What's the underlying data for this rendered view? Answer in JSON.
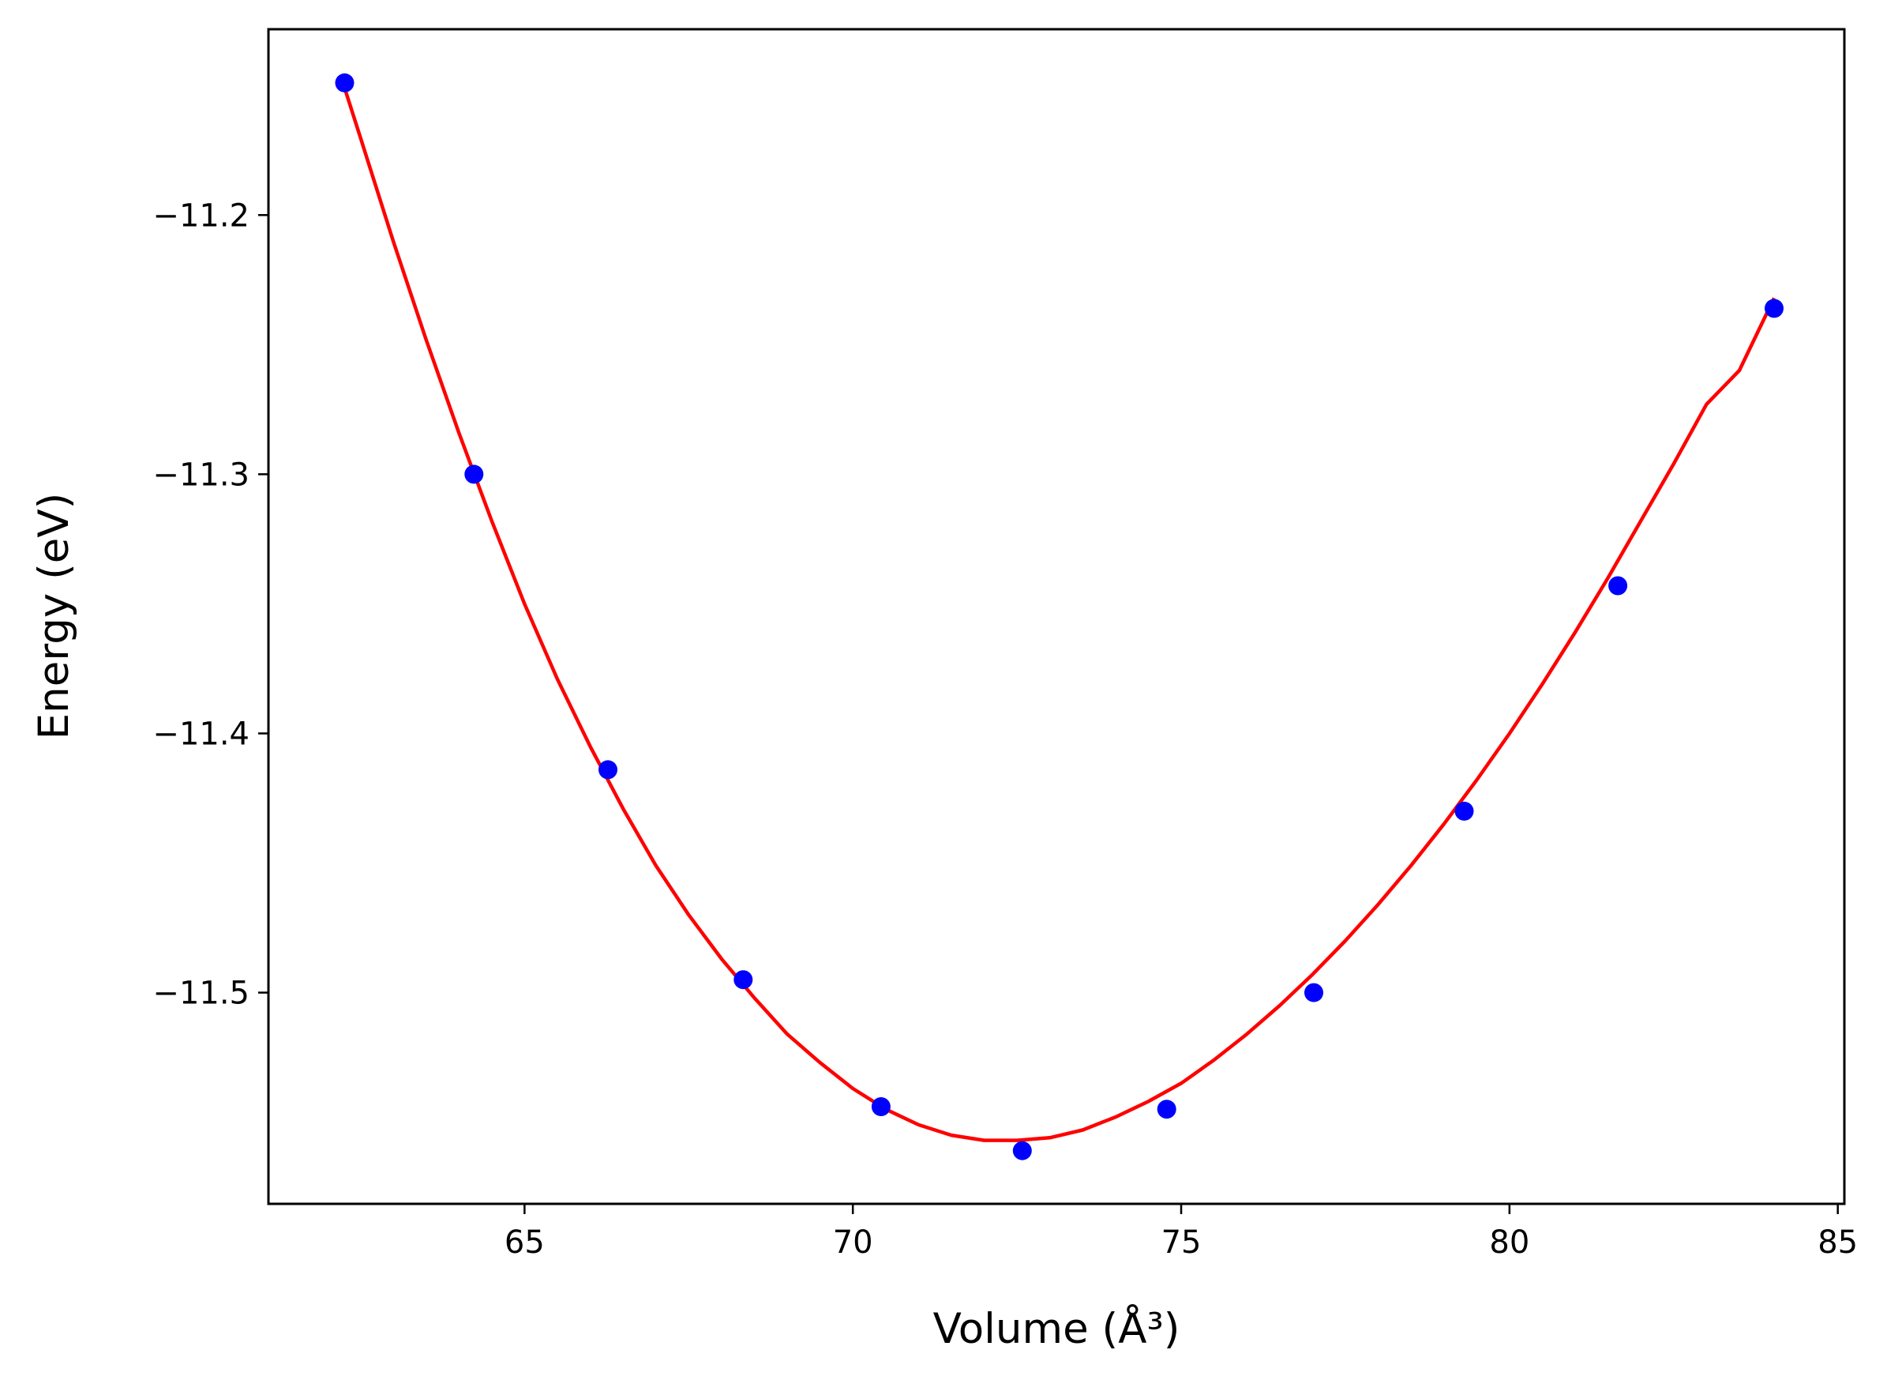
{
  "chart_data": {
    "type": "scatter",
    "title": "",
    "xlabel": "Volume (Å³)",
    "ylabel": "Energy (eV)",
    "xlim": [
      61.1,
      85.1
    ],
    "ylim": [
      -11.5815,
      -11.1283
    ],
    "grid": false,
    "x_ticks": [
      {
        "value": 65,
        "label": "65"
      },
      {
        "value": 70,
        "label": "70"
      },
      {
        "value": 75,
        "label": "75"
      },
      {
        "value": 80,
        "label": "80"
      },
      {
        "value": 85,
        "label": "85"
      }
    ],
    "y_ticks": [
      {
        "value": -11.2,
        "label": "−11.2"
      },
      {
        "value": -11.3,
        "label": "−11.3"
      },
      {
        "value": -11.4,
        "label": "−11.4"
      },
      {
        "value": -11.5,
        "label": "−11.5"
      }
    ],
    "series": [
      {
        "kind": "scatter",
        "color": "#0000ff",
        "x": [
          62.26,
          64.23,
          66.27,
          68.33,
          70.43,
          72.58,
          74.78,
          77.02,
          79.31,
          81.65,
          84.03
        ],
        "y": [
          -11.149,
          -11.3,
          -11.414,
          -11.495,
          -11.544,
          -11.561,
          -11.545,
          -11.5,
          -11.43,
          -11.343,
          -11.236
        ]
      },
      {
        "kind": "line",
        "color": "#ff0000",
        "x": [
          62.26,
          62.5,
          63.0,
          63.5,
          64.0,
          64.5,
          65.0,
          65.5,
          66.0,
          66.5,
          67.0,
          67.5,
          68.0,
          68.5,
          69.0,
          69.5,
          70.0,
          70.5,
          71.0,
          71.5,
          72.0,
          72.5,
          73.0,
          73.5,
          74.0,
          74.5,
          75.0,
          75.5,
          76.0,
          76.5,
          77.0,
          77.5,
          78.0,
          78.5,
          79.0,
          79.5,
          80.0,
          80.5,
          81.0,
          81.5,
          82.0,
          82.5,
          83.0,
          83.5,
          84.03
        ],
        "y": [
          -11.151,
          -11.17,
          -11.21,
          -11.248,
          -11.284,
          -11.318,
          -11.35,
          -11.379,
          -11.405,
          -11.429,
          -11.451,
          -11.47,
          -11.487,
          -11.502,
          -11.516,
          -11.527,
          -11.537,
          -11.545,
          -11.551,
          -11.555,
          -11.557,
          -11.557,
          -11.556,
          -11.553,
          -11.548,
          -11.542,
          -11.535,
          -11.526,
          -11.516,
          -11.505,
          -11.493,
          -11.48,
          -11.466,
          -11.451,
          -11.435,
          -11.418,
          -11.4,
          -11.381,
          -11.361,
          -11.34,
          -11.318,
          -11.296,
          -11.273,
          -11.26,
          -11.232
        ]
      }
    ]
  }
}
